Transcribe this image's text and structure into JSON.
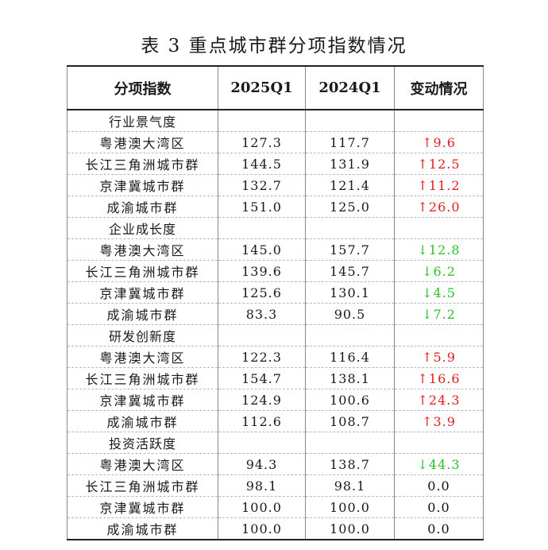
{
  "caption": "表 3 重点城市群分项指数情况",
  "headers": [
    "分项指数",
    "2025Q1",
    "2024Q1",
    "变动情况"
  ],
  "groups": [
    {
      "name": "行业景气度",
      "rows": [
        {
          "region": "粤港澳大湾区",
          "v2025": "127.3",
          "v2024": "117.7",
          "dir": "up",
          "change": "9.6"
        },
        {
          "region": "长江三角洲城市群",
          "v2025": "144.5",
          "v2024": "131.9",
          "dir": "up",
          "change": "12.5"
        },
        {
          "region": "京津冀城市群",
          "v2025": "132.7",
          "v2024": "121.4",
          "dir": "up",
          "change": "11.2"
        },
        {
          "region": "成渝城市群",
          "v2025": "151.0",
          "v2024": "125.0",
          "dir": "up",
          "change": "26.0"
        }
      ]
    },
    {
      "name": "企业成长度",
      "rows": [
        {
          "region": "粤港澳大湾区",
          "v2025": "145.0",
          "v2024": "157.7",
          "dir": "down",
          "change": "12.8"
        },
        {
          "region": "长江三角洲城市群",
          "v2025": "139.6",
          "v2024": "145.7",
          "dir": "down",
          "change": "6.2"
        },
        {
          "region": "京津冀城市群",
          "v2025": "125.6",
          "v2024": "130.1",
          "dir": "down",
          "change": "4.5"
        },
        {
          "region": "成渝城市群",
          "v2025": "83.3",
          "v2024": "90.5",
          "dir": "down",
          "change": "7.2"
        }
      ]
    },
    {
      "name": "研发创新度",
      "rows": [
        {
          "region": "粤港澳大湾区",
          "v2025": "122.3",
          "v2024": "116.4",
          "dir": "up",
          "change": "5.9"
        },
        {
          "region": "长江三角洲城市群",
          "v2025": "154.7",
          "v2024": "138.1",
          "dir": "up",
          "change": "16.6"
        },
        {
          "region": "京津冀城市群",
          "v2025": "124.9",
          "v2024": "100.6",
          "dir": "up",
          "change": "24.3"
        },
        {
          "region": "成渝城市群",
          "v2025": "112.6",
          "v2024": "108.7",
          "dir": "up",
          "change": "3.9"
        }
      ]
    },
    {
      "name": "投资活跃度",
      "rows": [
        {
          "region": "粤港澳大湾区",
          "v2025": "94.3",
          "v2024": "138.7",
          "dir": "down",
          "change": "44.3"
        },
        {
          "region": "长江三角洲城市群",
          "v2025": "98.1",
          "v2024": "98.1",
          "dir": "flat",
          "change": "0.0"
        },
        {
          "region": "京津冀城市群",
          "v2025": "100.0",
          "v2024": "100.0",
          "dir": "flat",
          "change": "0.0"
        },
        {
          "region": "成渝城市群",
          "v2025": "100.0",
          "v2024": "100.0",
          "dir": "flat",
          "change": "0.0"
        }
      ]
    }
  ],
  "arrows": {
    "up": "↑",
    "down": "↓",
    "flat": ""
  },
  "colors": {
    "up": "#e11d1d",
    "down": "#2bbf2b",
    "flat": "#111111"
  }
}
